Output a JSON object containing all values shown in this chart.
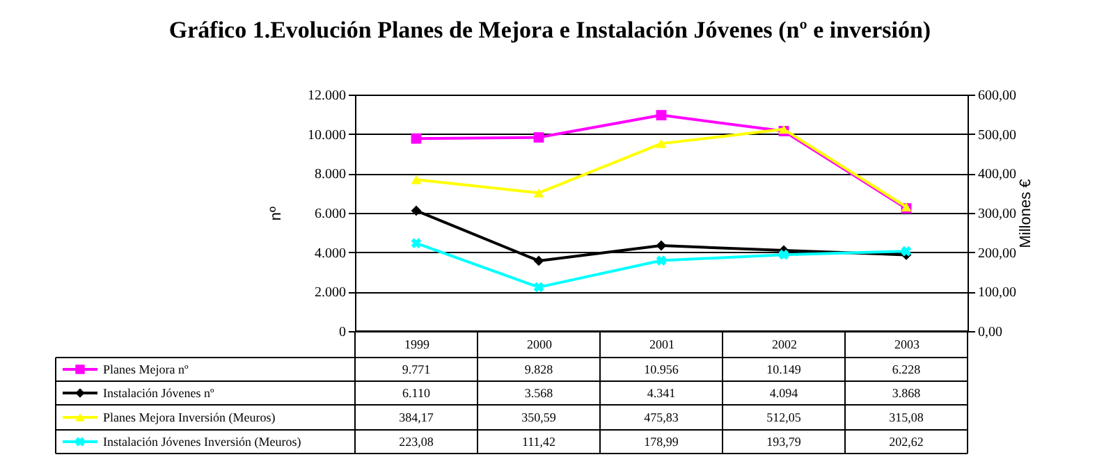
{
  "chart_data": {
    "type": "line",
    "title": "Gráfico 1.Evolución Planes de Mejora e Instalación Jóvenes (nº e inversión)",
    "ylabel": "nº",
    "y2label": "Millones €",
    "categories": [
      "1999",
      "2000",
      "2001",
      "2002",
      "2003"
    ],
    "ylim": [
      0,
      12000
    ],
    "yticks": [
      0,
      {
        "value": 2000,
        "label": "2.000"
      },
      {
        "value": 4000,
        "label": "4.000"
      },
      {
        "value": 6000,
        "label": "6.000"
      },
      {
        "value": 8000,
        "label": "8.000"
      },
      {
        "value": 10000,
        "label": "10.000"
      },
      {
        "value": 12000,
        "label": "12.000"
      }
    ],
    "y2lim": [
      0,
      600
    ],
    "y2ticks": [
      {
        "value": 0,
        "label": "0,00"
      },
      {
        "value": 100,
        "label": "100,00"
      },
      {
        "value": 200,
        "label": "200,00"
      },
      {
        "value": 300,
        "label": "300,00"
      },
      {
        "value": 400,
        "label": "400,00"
      },
      {
        "value": 500,
        "label": "500,00"
      },
      {
        "value": 600,
        "label": "600,00"
      }
    ],
    "grid": "y",
    "legend": "bottom left",
    "series": [
      {
        "name": "Planes Mejora nº",
        "color": "#ff00ff",
        "marker": "square",
        "values": [
          9771,
          9828,
          10956,
          10149,
          6228
        ],
        "value_labels": [
          "9.771",
          "9.828",
          "10.956",
          "10.149",
          "6.228"
        ]
      },
      {
        "name": "Instalación Jóvenes nº",
        "color": "#000000",
        "marker": "diamond",
        "values": [
          6110,
          3568,
          4341,
          4094,
          3868
        ],
        "value_labels": [
          "6.110",
          "3.568",
          "4.341",
          "4.094",
          "3.868"
        ]
      },
      {
        "name": "Planes Mejora Inversión (Meuros)",
        "color": "#ffff00",
        "marker": "triangle",
        "axis": "y2",
        "values": [
          384.17,
          350.59,
          475.83,
          512.05,
          315.08
        ],
        "value_labels": [
          "384,17",
          "350,59",
          "475,83",
          "512,05",
          "315,08"
        ]
      },
      {
        "name": "Instalación Jóvenes Inversión (Meuros)",
        "color": "#00ffff",
        "marker": "cross",
        "axis": "y2",
        "values": [
          223.08,
          111.42,
          178.99,
          193.79,
          202.62
        ],
        "value_labels": [
          "223,08",
          "111,42",
          "178,99",
          "193,79",
          "202,62"
        ]
      }
    ]
  }
}
